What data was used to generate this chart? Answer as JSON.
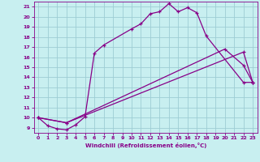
{
  "xlabel": "Windchill (Refroidissement éolien,°C)",
  "xlim": [
    -0.5,
    23.5
  ],
  "ylim": [
    8.5,
    21.5
  ],
  "yticks": [
    9,
    10,
    11,
    12,
    13,
    14,
    15,
    16,
    17,
    18,
    19,
    20,
    21
  ],
  "xticks": [
    0,
    1,
    2,
    3,
    4,
    5,
    6,
    7,
    8,
    9,
    10,
    11,
    12,
    13,
    14,
    15,
    16,
    17,
    18,
    19,
    20,
    21,
    22,
    23
  ],
  "bg_color": "#c8eff0",
  "grid_color": "#9ecdd4",
  "line_color": "#880088",
  "s1x": [
    0,
    1,
    2,
    3,
    4,
    5,
    6,
    7,
    10,
    11,
    12,
    13,
    14,
    15,
    16,
    17,
    18,
    22,
    23
  ],
  "s1y": [
    10.0,
    9.2,
    8.9,
    8.8,
    9.3,
    10.1,
    16.4,
    17.2,
    18.8,
    19.3,
    20.3,
    20.5,
    21.3,
    20.5,
    20.9,
    20.4,
    18.1,
    13.5,
    13.5
  ],
  "s2x": [
    0,
    3,
    22,
    23
  ],
  "s2y": [
    10.0,
    9.5,
    16.5,
    13.5
  ],
  "s3x": [
    0,
    3,
    20,
    22,
    23
  ],
  "s3y": [
    10.0,
    9.5,
    16.8,
    15.2,
    13.5
  ]
}
